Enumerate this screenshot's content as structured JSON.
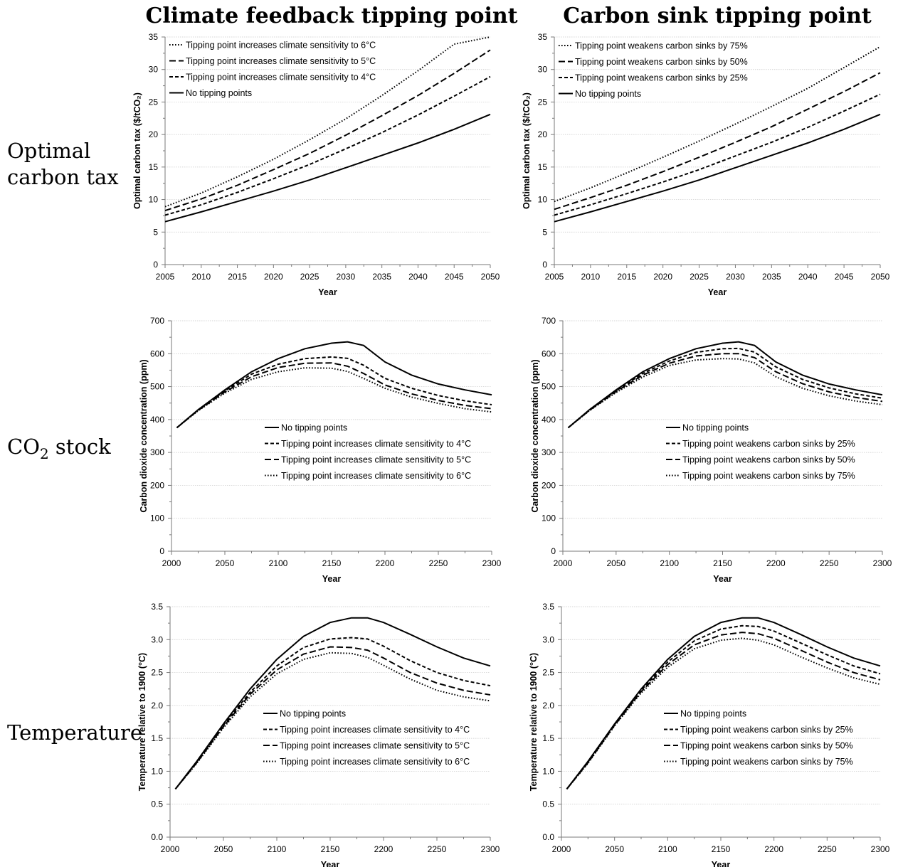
{
  "column_titles": [
    "Climate feedback tipping point",
    "Carbon sink tipping point"
  ],
  "row_labels": {
    "tax": [
      "Optimal",
      "carbon tax"
    ],
    "co2_prefix": "CO",
    "co2_sub": "2",
    "co2_suffix": " stock",
    "temperature": "Temperature"
  },
  "chart_data": [
    {
      "id": "tax-climate",
      "type": "line",
      "xlabel": "Year",
      "ylabel": "Optimal carbon tax ($/tCO₂)",
      "xlim": [
        2005,
        2050
      ],
      "ylim": [
        0,
        35
      ],
      "xticks": [
        2005,
        2010,
        2015,
        2020,
        2025,
        2030,
        2035,
        2040,
        2045,
        2050
      ],
      "yticks": [
        0,
        5,
        10,
        15,
        20,
        25,
        30,
        35
      ],
      "grid": "horizontal",
      "legend_position": "top-left",
      "x": [
        2005,
        2010,
        2015,
        2020,
        2025,
        2030,
        2035,
        2040,
        2045,
        2050
      ],
      "series": [
        {
          "name": "Tipping point increases climate sensitivity to 6°C",
          "style": "dotted",
          "values": [
            8.9,
            11.0,
            13.5,
            16.2,
            19.2,
            22.4,
            26.0,
            29.8,
            33.9,
            38.0
          ]
        },
        {
          "name": "Tipping point increases climate sensitivity to 5°C",
          "style": "longdash",
          "values": [
            8.3,
            10.1,
            12.2,
            14.6,
            17.1,
            19.9,
            22.9,
            26.0,
            29.4,
            33.0
          ]
        },
        {
          "name": "Tipping point increases climate sensitivity to 4°C",
          "style": "dashed",
          "values": [
            7.6,
            9.2,
            11.1,
            13.2,
            15.4,
            17.8,
            20.3,
            23.0,
            25.9,
            28.9
          ]
        },
        {
          "name": "No tipping points",
          "style": "solid",
          "values": [
            6.6,
            8.1,
            9.7,
            11.3,
            13.0,
            14.9,
            16.8,
            18.7,
            20.8,
            23.1
          ]
        }
      ]
    },
    {
      "id": "tax-sink",
      "type": "line",
      "xlabel": "Year",
      "ylabel": "Optimal carbon tax ($/tCO₂)",
      "xlim": [
        2005,
        2050
      ],
      "ylim": [
        0,
        35
      ],
      "xticks": [
        2005,
        2010,
        2015,
        2020,
        2025,
        2030,
        2035,
        2040,
        2045,
        2050
      ],
      "yticks": [
        0,
        5,
        10,
        15,
        20,
        25,
        30,
        35
      ],
      "grid": "horizontal",
      "legend_position": "top-left",
      "x": [
        2005,
        2010,
        2015,
        2020,
        2025,
        2030,
        2035,
        2040,
        2045,
        2050
      ],
      "series": [
        {
          "name": "Tipping point weakens carbon sinks by 75%",
          "style": "dotted",
          "values": [
            9.7,
            11.8,
            14.1,
            16.5,
            19.0,
            21.6,
            24.3,
            27.1,
            30.3,
            33.5
          ]
        },
        {
          "name": "Tipping point weakens carbon sinks by 50%",
          "style": "longdash",
          "values": [
            8.5,
            10.3,
            12.2,
            14.3,
            16.5,
            18.8,
            21.2,
            23.9,
            26.6,
            29.5
          ]
        },
        {
          "name": "Tipping point weakens carbon sinks by 25%",
          "style": "dashed",
          "values": [
            7.6,
            9.2,
            10.9,
            12.7,
            14.6,
            16.7,
            18.8,
            21.1,
            23.6,
            26.2
          ]
        },
        {
          "name": "No tipping points",
          "style": "solid",
          "values": [
            6.6,
            8.1,
            9.7,
            11.3,
            13.0,
            14.9,
            16.8,
            18.7,
            20.8,
            23.1
          ]
        }
      ]
    },
    {
      "id": "co2-climate",
      "type": "line",
      "xlabel": "Year",
      "ylabel": "Carbon dioxide concentration (ppm)",
      "xlim": [
        2000,
        2300
      ],
      "ylim": [
        0,
        700
      ],
      "xticks": [
        2000,
        2050,
        2100,
        2150,
        2200,
        2250,
        2300
      ],
      "yticks": [
        0,
        100,
        200,
        300,
        400,
        500,
        600,
        700
      ],
      "grid": "horizontal",
      "legend_position": "center",
      "x": [
        2005,
        2025,
        2050,
        2075,
        2100,
        2125,
        2150,
        2165,
        2180,
        2200,
        2225,
        2250,
        2275,
        2300
      ],
      "series": [
        {
          "name": "No tipping points",
          "style": "solid",
          "values": [
            375,
            430,
            490,
            545,
            585,
            615,
            632,
            636,
            625,
            575,
            535,
            508,
            490,
            475
          ]
        },
        {
          "name": "Tipping point increases climate sensitivity to 4°C",
          "style": "dashed",
          "values": [
            375,
            429,
            487,
            538,
            568,
            585,
            590,
            586,
            565,
            525,
            495,
            473,
            457,
            445
          ]
        },
        {
          "name": "Tipping point increases climate sensitivity to 5°C",
          "style": "longdash",
          "values": [
            375,
            428,
            484,
            530,
            558,
            571,
            572,
            562,
            540,
            505,
            478,
            458,
            443,
            433
          ]
        },
        {
          "name": "Tipping point increases climate sensitivity to 6°C",
          "style": "dotted",
          "values": [
            375,
            427,
            480,
            522,
            545,
            557,
            556,
            546,
            525,
            495,
            468,
            449,
            433,
            423
          ]
        }
      ]
    },
    {
      "id": "co2-sink",
      "type": "line",
      "xlabel": "Year",
      "ylabel": "Carbon dioxide concentration (ppm)",
      "xlim": [
        2000,
        2300
      ],
      "ylim": [
        0,
        700
      ],
      "xticks": [
        2000,
        2050,
        2100,
        2150,
        2200,
        2250,
        2300
      ],
      "yticks": [
        0,
        100,
        200,
        300,
        400,
        500,
        600,
        700
      ],
      "grid": "horizontal",
      "legend_position": "center",
      "x": [
        2005,
        2025,
        2050,
        2075,
        2100,
        2125,
        2150,
        2165,
        2180,
        2200,
        2225,
        2250,
        2275,
        2300
      ],
      "series": [
        {
          "name": "No tipping points",
          "style": "solid",
          "values": [
            375,
            430,
            490,
            545,
            585,
            615,
            632,
            636,
            625,
            575,
            535,
            508,
            490,
            475
          ]
        },
        {
          "name": "Tipping point weakens carbon sinks by 25%",
          "style": "dashed",
          "values": [
            375,
            429,
            487,
            540,
            578,
            604,
            615,
            616,
            605,
            560,
            522,
            496,
            478,
            465
          ]
        },
        {
          "name": "Tipping point weakens carbon sinks by 50%",
          "style": "longdash",
          "values": [
            375,
            428,
            485,
            535,
            571,
            593,
            600,
            600,
            588,
            545,
            509,
            484,
            467,
            455
          ]
        },
        {
          "name": "Tipping point weakens carbon sinks by 75%",
          "style": "dotted",
          "values": [
            375,
            427,
            482,
            529,
            564,
            581,
            585,
            584,
            572,
            530,
            495,
            472,
            456,
            445
          ]
        }
      ]
    },
    {
      "id": "temp-climate",
      "type": "line",
      "xlabel": "Year",
      "ylabel": "Temperature relative to 1900 (°C)",
      "xlim": [
        2000,
        2300
      ],
      "ylim": [
        0,
        3.5
      ],
      "xticks": [
        2000,
        2050,
        2100,
        2150,
        2200,
        2250,
        2300
      ],
      "yticks": [
        0.0,
        0.5,
        1.0,
        1.5,
        2.0,
        2.5,
        3.0,
        3.5
      ],
      "ytick_labels": [
        "0.0",
        "0.5",
        "1.0",
        "1.5",
        "2.0",
        "2.5",
        "3.0",
        "3.5"
      ],
      "grid": "horizontal",
      "legend_position": "center-right",
      "x": [
        2005,
        2025,
        2050,
        2075,
        2100,
        2125,
        2150,
        2170,
        2185,
        2200,
        2225,
        2250,
        2275,
        2300
      ],
      "series": [
        {
          "name": "No tipping points",
          "style": "solid",
          "values": [
            0.73,
            1.15,
            1.72,
            2.25,
            2.7,
            3.05,
            3.26,
            3.33,
            3.33,
            3.26,
            3.08,
            2.89,
            2.72,
            2.6
          ]
        },
        {
          "name": "Tipping point increases climate sensitivity to 4°C",
          "style": "dashed",
          "values": [
            0.73,
            1.14,
            1.7,
            2.2,
            2.6,
            2.88,
            3.01,
            3.03,
            3.01,
            2.9,
            2.68,
            2.5,
            2.38,
            2.3
          ]
        },
        {
          "name": "Tipping point increases climate sensitivity to 5°C",
          "style": "longdash",
          "values": [
            0.73,
            1.13,
            1.68,
            2.17,
            2.54,
            2.78,
            2.89,
            2.88,
            2.84,
            2.72,
            2.5,
            2.34,
            2.23,
            2.16
          ]
        },
        {
          "name": "Tipping point increases climate sensitivity to 6°C",
          "style": "dotted",
          "values": [
            0.73,
            1.12,
            1.66,
            2.13,
            2.48,
            2.7,
            2.8,
            2.79,
            2.73,
            2.61,
            2.4,
            2.23,
            2.13,
            2.07
          ]
        }
      ]
    },
    {
      "id": "temp-sink",
      "type": "line",
      "xlabel": "Year",
      "ylabel": "Temperature relative to 1900 (°C)",
      "xlim": [
        2000,
        2300
      ],
      "ylim": [
        0,
        3.5
      ],
      "xticks": [
        2000,
        2050,
        2100,
        2150,
        2200,
        2250,
        2300
      ],
      "yticks": [
        0.0,
        0.5,
        1.0,
        1.5,
        2.0,
        2.5,
        3.0,
        3.5
      ],
      "ytick_labels": [
        "0.0",
        "0.5",
        "1.0",
        "1.5",
        "2.0",
        "2.5",
        "3.0",
        "3.5"
      ],
      "grid": "horizontal",
      "legend_position": "center-right",
      "x": [
        2005,
        2025,
        2050,
        2075,
        2100,
        2125,
        2150,
        2170,
        2185,
        2200,
        2225,
        2250,
        2275,
        2300
      ],
      "series": [
        {
          "name": "No tipping points",
          "style": "solid",
          "values": [
            0.73,
            1.15,
            1.72,
            2.25,
            2.7,
            3.05,
            3.26,
            3.33,
            3.33,
            3.26,
            3.08,
            2.89,
            2.72,
            2.6
          ]
        },
        {
          "name": "Tipping point weakens carbon sinks by 25%",
          "style": "dashed",
          "values": [
            0.73,
            1.14,
            1.71,
            2.23,
            2.66,
            2.98,
            3.16,
            3.21,
            3.2,
            3.13,
            2.95,
            2.77,
            2.6,
            2.48
          ]
        },
        {
          "name": "Tipping point weakens carbon sinks by 50%",
          "style": "longdash",
          "values": [
            0.73,
            1.13,
            1.7,
            2.21,
            2.62,
            2.92,
            3.07,
            3.11,
            3.09,
            3.02,
            2.84,
            2.66,
            2.5,
            2.39
          ]
        },
        {
          "name": "Tipping point weakens carbon sinks by 75%",
          "style": "dotted",
          "values": [
            0.73,
            1.12,
            1.69,
            2.19,
            2.58,
            2.86,
            2.99,
            3.02,
            2.99,
            2.92,
            2.74,
            2.57,
            2.42,
            2.32
          ]
        }
      ]
    }
  ]
}
